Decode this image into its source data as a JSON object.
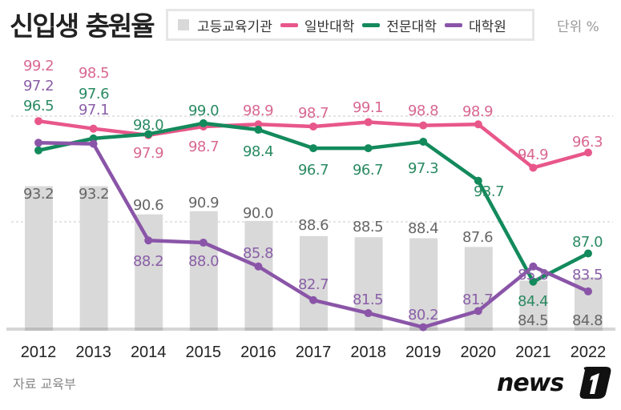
{
  "header": {
    "title": "신입생 충원율",
    "unit": "단위 %"
  },
  "legend": [
    {
      "label": "고등교육기관",
      "color": "#d9d9d9",
      "marker": "square"
    },
    {
      "label": "일반대학",
      "color": "#e8578a",
      "marker": "line"
    },
    {
      "label": "전문대학",
      "color": "#138a5c",
      "marker": "line"
    },
    {
      "label": "대학원",
      "color": "#8a55a8",
      "marker": "line"
    }
  ],
  "footer": {
    "source": "자료 교육부",
    "logo": "news 1"
  },
  "chart_data": {
    "type": "bar+line",
    "title": "신입생 충원율",
    "unit": "%",
    "categories": [
      "2012",
      "2013",
      "2014",
      "2015",
      "2016",
      "2017",
      "2018",
      "2019",
      "2020",
      "2021",
      "2022"
    ],
    "ylim": [
      80,
      101
    ],
    "grid": "dashed horizontal",
    "legend_position": "top",
    "series": [
      {
        "name": "고등교육기관",
        "type": "bar",
        "color": "#d9d9d9",
        "label_color": "#666666",
        "values": [
          93.2,
          93.2,
          90.6,
          90.9,
          90.0,
          88.6,
          88.5,
          88.4,
          87.6,
          84.5,
          84.8
        ]
      },
      {
        "name": "일반대학",
        "type": "line",
        "color": "#e8578a",
        "label_color": "#d86892",
        "values": [
          99.2,
          98.5,
          97.9,
          98.7,
          98.9,
          98.7,
          99.1,
          98.8,
          98.9,
          94.9,
          96.3
        ]
      },
      {
        "name": "전문대학",
        "type": "line",
        "color": "#138a5c",
        "label_color": "#2a8a62",
        "values": [
          96.5,
          97.6,
          98.0,
          99.0,
          98.4,
          96.7,
          96.7,
          97.3,
          93.7,
          84.4,
          87.0
        ]
      },
      {
        "name": "대학원",
        "type": "line",
        "color": "#8a55a8",
        "label_color": "#8a5fa8",
        "values": [
          97.2,
          97.1,
          88.2,
          88.0,
          85.8,
          82.7,
          81.5,
          80.2,
          81.7,
          85.8,
          83.5
        ]
      }
    ]
  }
}
